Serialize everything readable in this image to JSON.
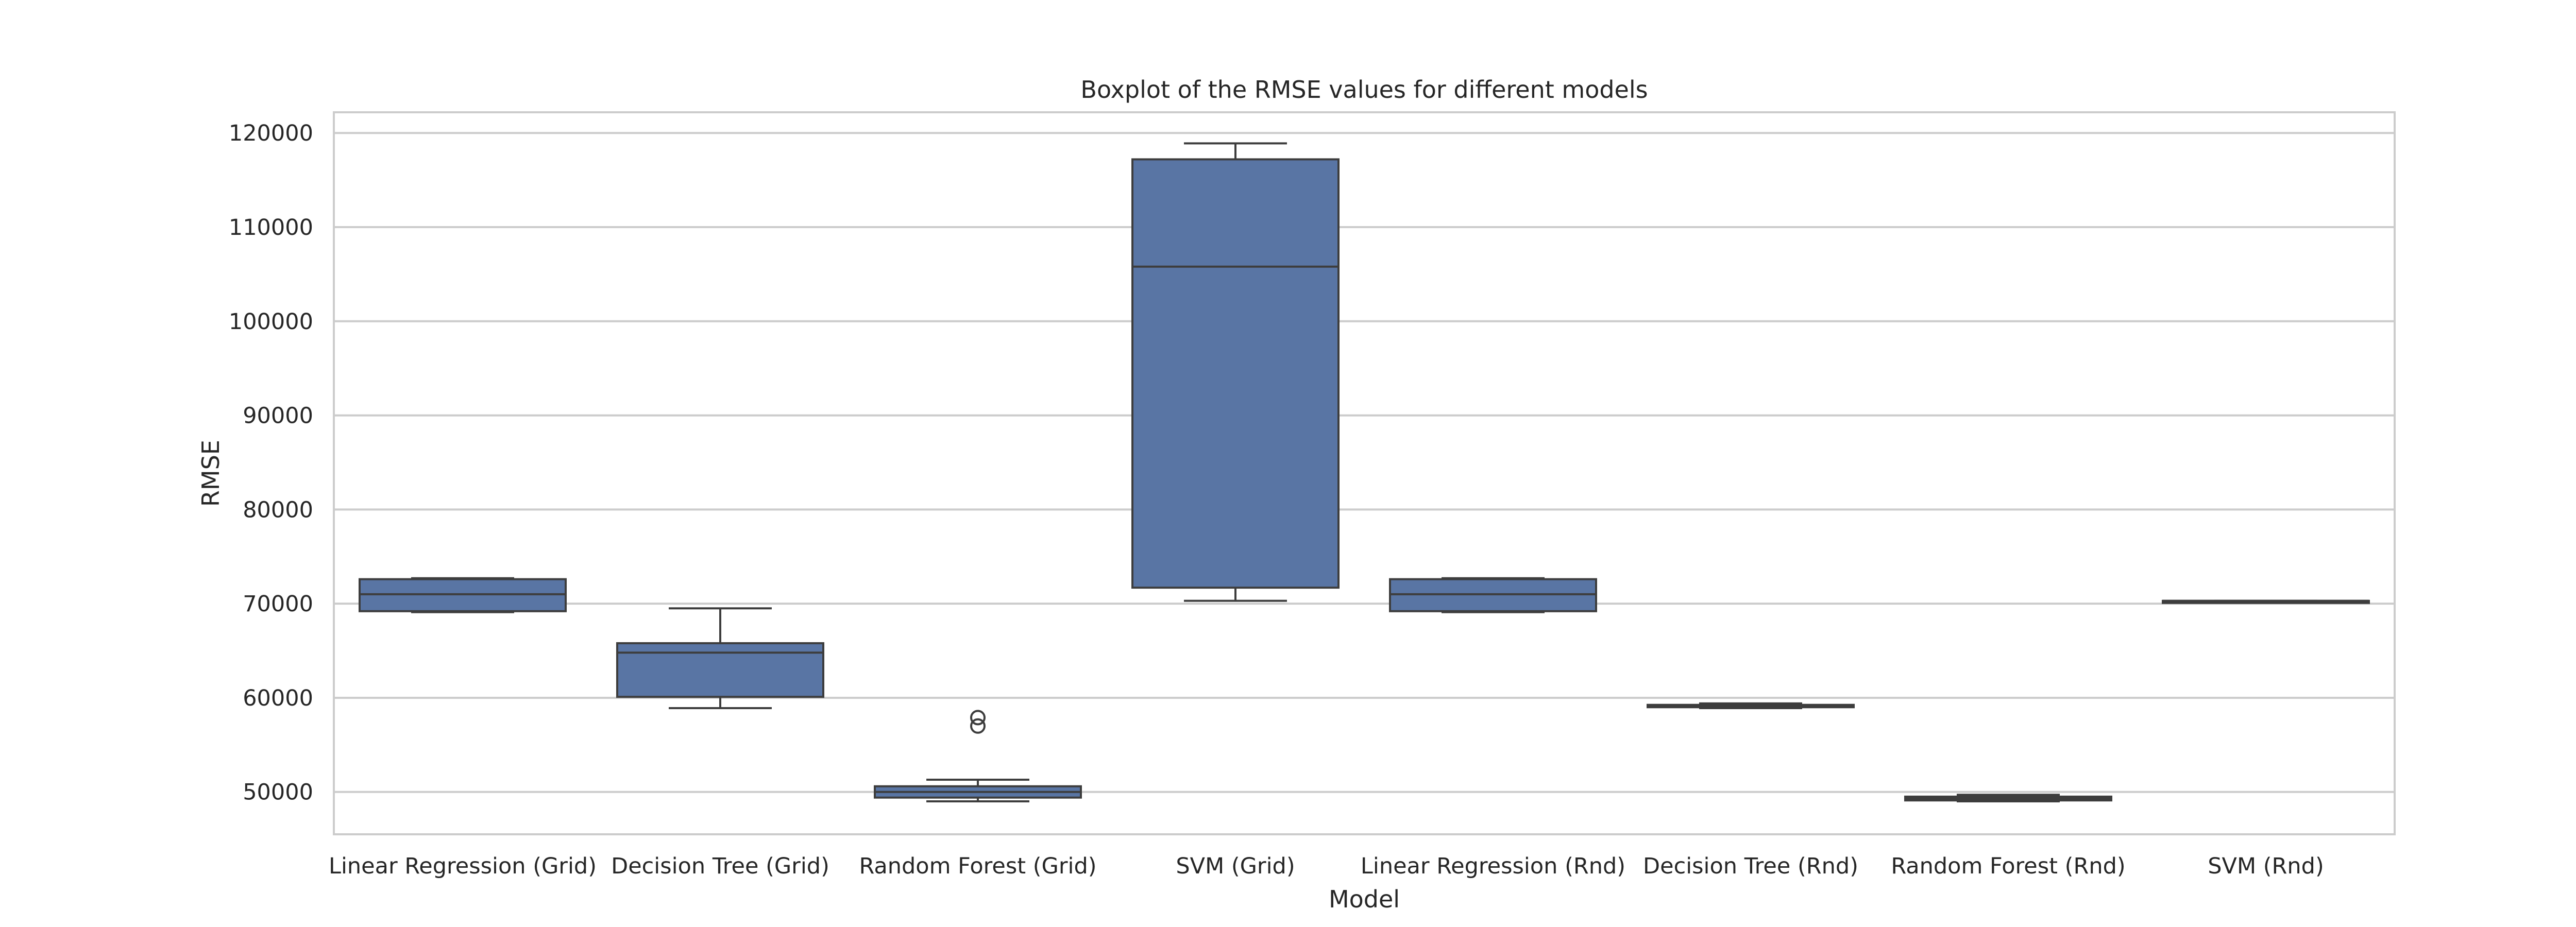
{
  "chart_data": {
    "type": "boxplot",
    "title": "Boxplot of the RMSE values for different models",
    "xlabel": "Model",
    "ylabel": "RMSE",
    "ylim": [
      45500,
      122200
    ],
    "yticks": [
      50000,
      60000,
      70000,
      80000,
      90000,
      100000,
      110000,
      120000
    ],
    "ytick_labels": [
      "50000",
      "60000",
      "70000",
      "80000",
      "90000",
      "100000",
      "110000",
      "120000"
    ],
    "grid": true,
    "box_color": "#5975a4",
    "edge_color": "#3d3d3d",
    "categories": [
      "Linear Regression (Grid)",
      "Decision Tree (Grid)",
      "Random Forest (Grid)",
      "SVM (Grid)",
      "Linear Regression (Rnd)",
      "Decision Tree (Rnd)",
      "Random Forest (Rnd)",
      "SVM (Rnd)"
    ],
    "boxes": [
      {
        "whisker_low": 69100,
        "q1": 69200,
        "median": 71000,
        "q3": 72600,
        "whisker_high": 72700,
        "outliers": []
      },
      {
        "whisker_low": 58900,
        "q1": 60100,
        "median": 64800,
        "q3": 65800,
        "whisker_high": 69500,
        "outliers": []
      },
      {
        "whisker_low": 49000,
        "q1": 49400,
        "median": 50000,
        "q3": 50600,
        "whisker_high": 51300,
        "outliers": [
          57000,
          57900
        ]
      },
      {
        "whisker_low": 70300,
        "q1": 71700,
        "median": 105800,
        "q3": 117200,
        "whisker_high": 118900,
        "outliers": []
      },
      {
        "whisker_low": 69100,
        "q1": 69200,
        "median": 71000,
        "q3": 72600,
        "whisker_high": 72700,
        "outliers": []
      },
      {
        "whisker_low": 58900,
        "q1": 59000,
        "median": 59100,
        "q3": 59250,
        "whisker_high": 59400,
        "outliers": []
      },
      {
        "whisker_low": 49000,
        "q1": 49100,
        "median": 49300,
        "q3": 49500,
        "whisker_high": 49700,
        "outliers": []
      },
      {
        "whisker_low": 70300,
        "q1": 70300,
        "median": 70300,
        "q3": 70300,
        "whisker_high": 70300,
        "outliers": []
      }
    ]
  }
}
